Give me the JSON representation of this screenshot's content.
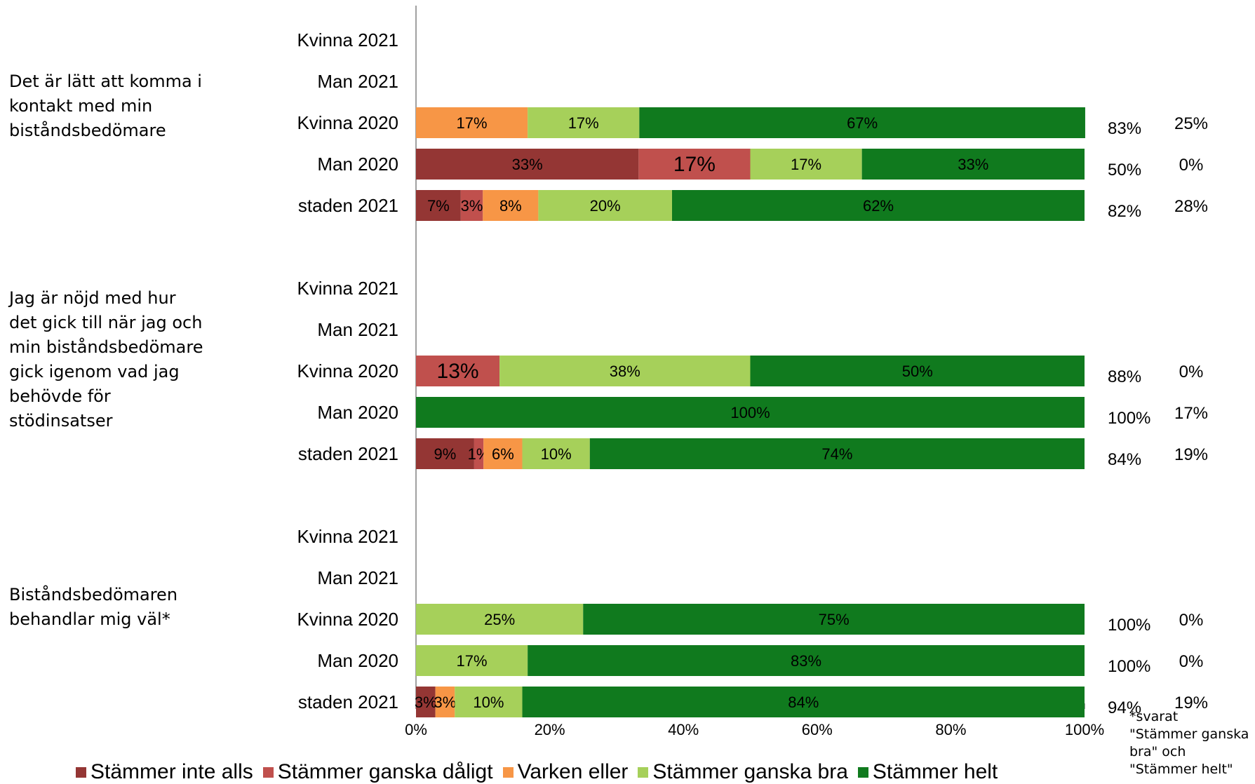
{
  "chart_data": {
    "type": "bar",
    "orientation": "horizontal",
    "stacked": true,
    "xlim": [
      0,
      100
    ],
    "x_ticks": [
      "0%",
      "20%",
      "40%",
      "60%",
      "80%",
      "100%"
    ],
    "legend_position": "bottom",
    "series": [
      {
        "name": "Stämmer inte alls",
        "color": "#943634"
      },
      {
        "name": "Stämmer ganska dåligt",
        "color": "#c0504d"
      },
      {
        "name": "Varken eller",
        "color": "#f79646"
      },
      {
        "name": "Stämmer ganska bra",
        "color": "#a6d05a"
      },
      {
        "name": "Stämmer helt",
        "color": "#107a1e"
      }
    ],
    "groups": [
      {
        "question": "Det är lätt att komma i\nkontakt med min\nbiståndsbedömare",
        "rows": [
          {
            "label": "Kvinna 2021",
            "values": [
              0,
              0,
              0,
              0,
              0
            ],
            "value_labels": [
              "",
              "",
              "",
              "",
              ""
            ],
            "col1": "",
            "col2": ""
          },
          {
            "label": "Man 2021",
            "values": [
              0,
              0,
              0,
              0,
              0
            ],
            "value_labels": [
              "",
              "",
              "",
              "",
              ""
            ],
            "col1": "",
            "col2": ""
          },
          {
            "label": "Kvinna 2020",
            "values": [
              0,
              0,
              16.7,
              16.7,
              66.7
            ],
            "value_labels": [
              "",
              "",
              "17%",
              "17%",
              "67%"
            ],
            "col1": "83%",
            "col2": "25%"
          },
          {
            "label": "Man 2020",
            "values": [
              33.3,
              16.7,
              0,
              16.7,
              33.3
            ],
            "value_labels": [
              "33%",
              "17%",
              "",
              "17%",
              "33%"
            ],
            "col1": "50%",
            "col2": "0%"
          },
          {
            "label": "staden 2021",
            "values": [
              6.7,
              3.3,
              8.3,
              20,
              61.7
            ],
            "value_labels": [
              "7%",
              "3%",
              "8%",
              "20%",
              "62%"
            ],
            "col1": "82%",
            "col2": "28%"
          }
        ]
      },
      {
        "question": "Jag är nöjd med hur\ndet gick till när jag och\nmin biståndsbedömare\ngick igenom vad jag\nbehövde för\nstödinsatser",
        "rows": [
          {
            "label": "Kvinna 2021",
            "values": [
              0,
              0,
              0,
              0,
              0
            ],
            "value_labels": [
              "",
              "",
              "",
              "",
              ""
            ],
            "col1": "",
            "col2": ""
          },
          {
            "label": "Man 2021",
            "values": [
              0,
              0,
              0,
              0,
              0
            ],
            "value_labels": [
              "",
              "",
              "",
              "",
              ""
            ],
            "col1": "",
            "col2": ""
          },
          {
            "label": "Kvinna 2020",
            "values": [
              0,
              12.5,
              0,
              37.5,
              50
            ],
            "value_labels": [
              "",
              "13%",
              "",
              "38%",
              "50%"
            ],
            "col1": "88%",
            "col2": "0%"
          },
          {
            "label": "Man 2020",
            "values": [
              0,
              0,
              0,
              0,
              100
            ],
            "value_labels": [
              "",
              "",
              "",
              "",
              "100%"
            ],
            "col1": "100%",
            "col2": "17%"
          },
          {
            "label": "staden 2021",
            "values": [
              8.7,
              1.4,
              5.8,
              10.1,
              74
            ],
            "value_labels": [
              "9%",
              "1%",
              "6%",
              "10%",
              "74%"
            ],
            "col1": "84%",
            "col2": "19%"
          }
        ]
      },
      {
        "question": "Biståndsbedömaren\nbehandlar mig väl*",
        "rows": [
          {
            "label": "Kvinna 2021",
            "values": [
              0,
              0,
              0,
              0,
              0
            ],
            "value_labels": [
              "",
              "",
              "",
              "",
              ""
            ],
            "col1": "",
            "col2": ""
          },
          {
            "label": "Man 2021",
            "values": [
              0,
              0,
              0,
              0,
              0
            ],
            "value_labels": [
              "",
              "",
              "",
              "",
              ""
            ],
            "col1": "",
            "col2": ""
          },
          {
            "label": "Kvinna 2020",
            "values": [
              0,
              0,
              0,
              25,
              75
            ],
            "value_labels": [
              "",
              "",
              "",
              "25%",
              "75%"
            ],
            "col1": "100%",
            "col2": "0%"
          },
          {
            "label": "Man 2020",
            "values": [
              0,
              0,
              0,
              16.7,
              83.3
            ],
            "value_labels": [
              "",
              "",
              "",
              "17%",
              "83%"
            ],
            "col1": "100%",
            "col2": "0%"
          },
          {
            "label": "staden 2021",
            "values": [
              2.9,
              0,
              2.9,
              10.1,
              84.1
            ],
            "value_labels": [
              "3%",
              "",
              "3%",
              "10%",
              "84%"
            ],
            "col1": "94%",
            "col2": "19%"
          }
        ]
      }
    ]
  },
  "footnote": "*svarat\n\"Stämmer ganska\nbra\" och\n\"Stämmer helt\""
}
